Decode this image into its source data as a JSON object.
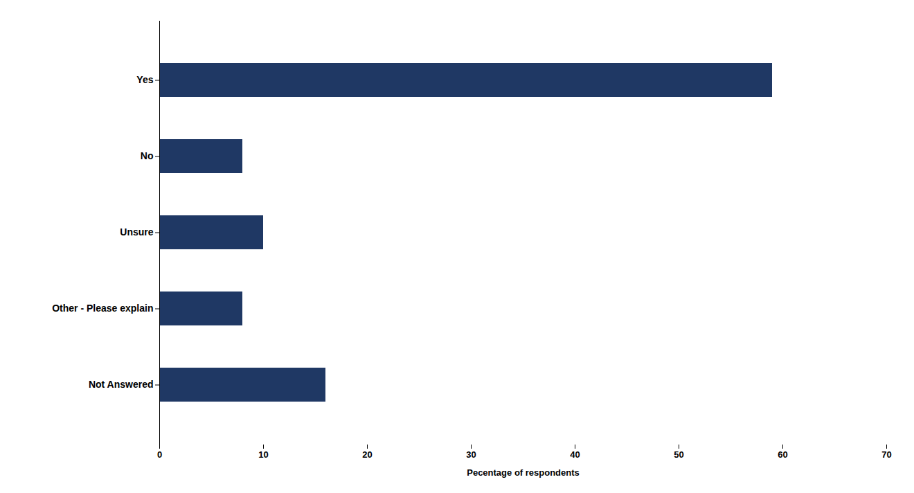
{
  "chart_data": {
    "type": "bar",
    "orientation": "horizontal",
    "categories": [
      "Yes",
      "No",
      "Unsure",
      "Other - Please explain",
      "Not Answered"
    ],
    "values": [
      59,
      8,
      10,
      8,
      16
    ],
    "color": "#1F3864",
    "xlabel": "Pecentage of respondents",
    "xlim": [
      0,
      70
    ],
    "xticks": [
      0,
      10,
      20,
      30,
      40,
      50,
      60,
      70
    ],
    "grid": false
  }
}
